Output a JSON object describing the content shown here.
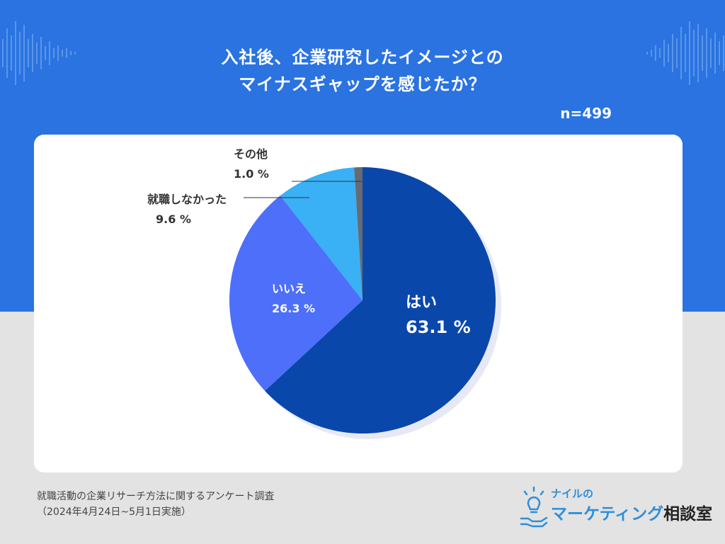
{
  "header": {
    "title_line1": "入社後、企業研究したイメージとの",
    "title_line2": "マイナスギャップを感じたか？",
    "sample_size": "n=499"
  },
  "chart_data": {
    "type": "pie",
    "title": "入社後、企業研究したイメージとのマイナスギャップを感じたか？",
    "start_direction": "top",
    "slices": [
      {
        "label": "はい",
        "value": 63.1,
        "value_label": "63.1 %",
        "color": "#0a47ab"
      },
      {
        "label": "いいえ",
        "value": 26.3,
        "value_label": "26.3 %",
        "color": "#4d6ffa"
      },
      {
        "label": "就職しなかった",
        "value": 9.6,
        "value_label": "9.6 %",
        "color": "#3ab0f5"
      },
      {
        "label": "その他",
        "value": 1.0,
        "value_label": "1.0 %",
        "color": "#666b73"
      }
    ]
  },
  "footer": {
    "survey_name": "就職活動の企業リサーチ方法に関するアンケート調査",
    "survey_period": "（2024年4月24日~5月1日実施）"
  },
  "logo": {
    "line1": "ナイルの",
    "line2a": "マーケティング",
    "line2b": "相談室"
  }
}
